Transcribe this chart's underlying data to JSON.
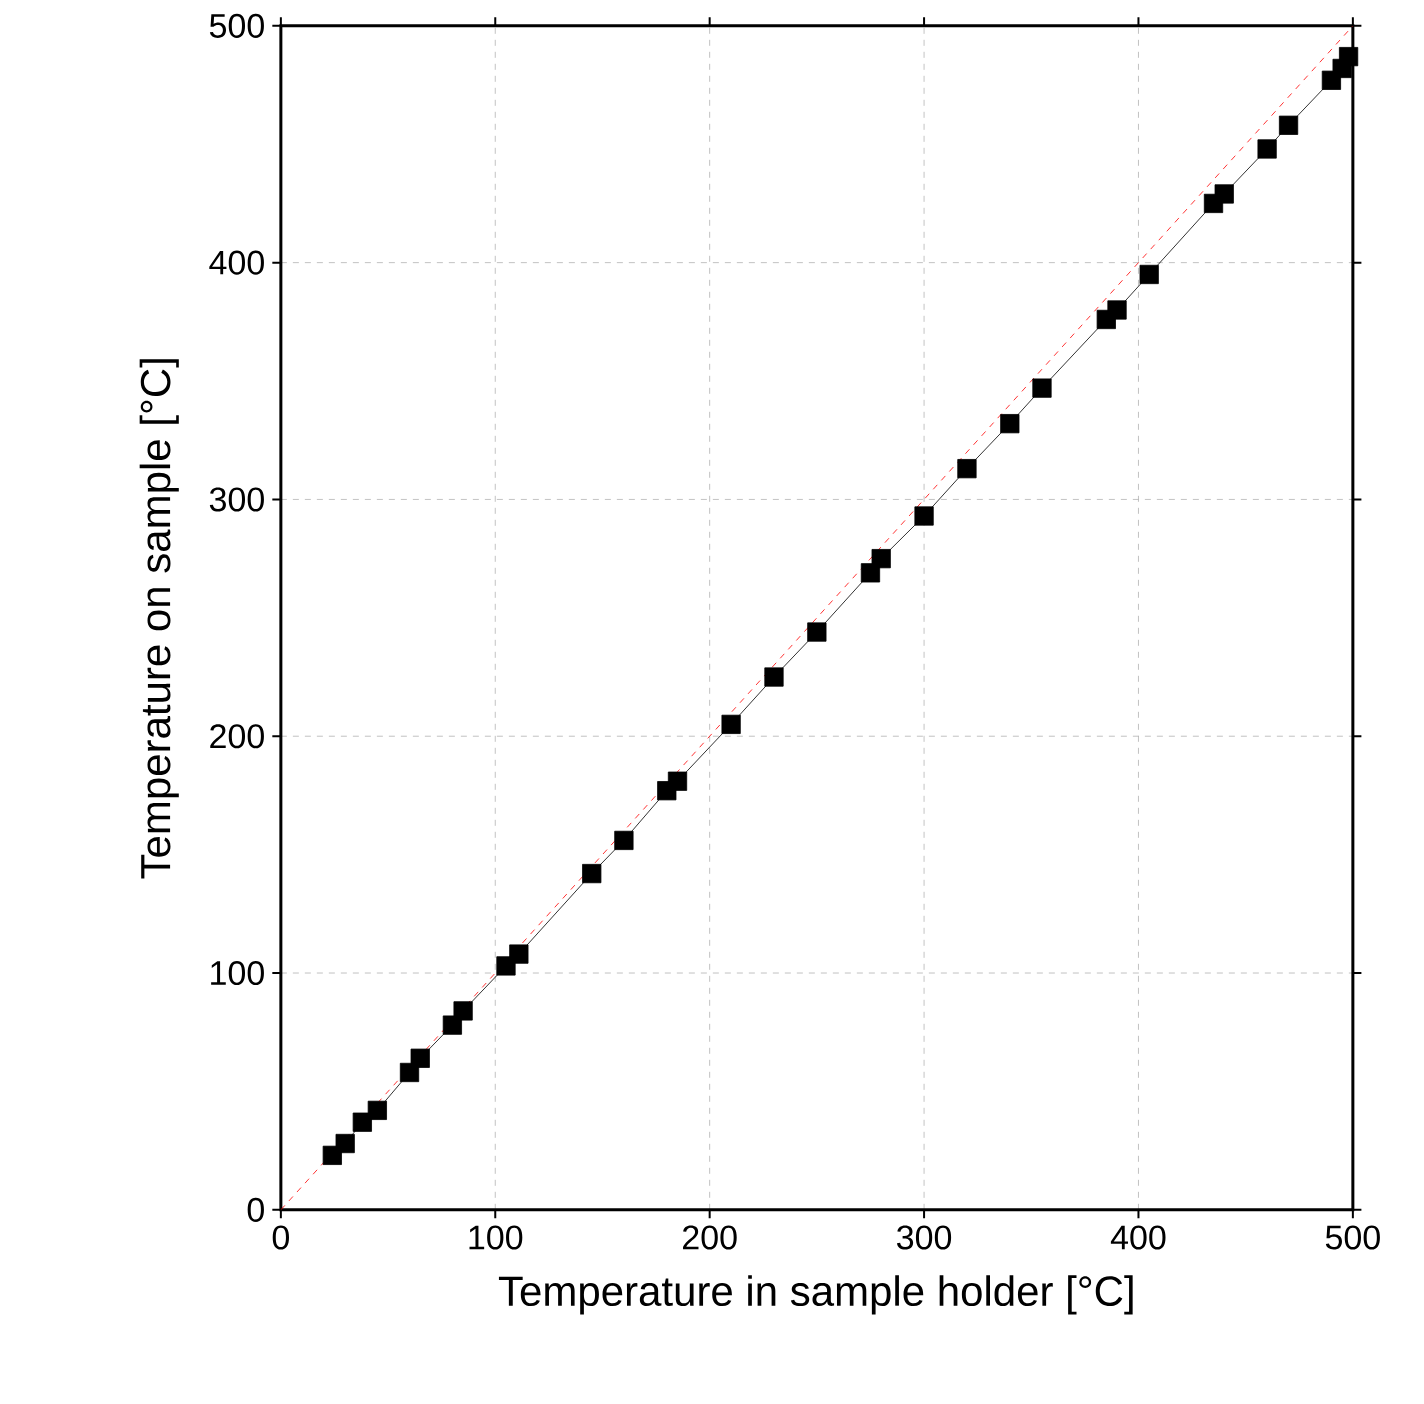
{
  "chart_data": {
    "type": "line",
    "xlabel": "Temperature in sample holder [°C]",
    "ylabel": "Temperature on sample [°C]",
    "xlim": [
      0,
      500
    ],
    "ylim": [
      0,
      500
    ],
    "xticks": [
      0,
      100,
      200,
      300,
      400,
      500
    ],
    "yticks": [
      0,
      100,
      200,
      300,
      400,
      500
    ],
    "grid": true,
    "series": [
      {
        "color": "#000000",
        "marker": "square",
        "line_style": "solid",
        "x": [
          24,
          30,
          38,
          45,
          60,
          65,
          80,
          85,
          105,
          111,
          145,
          160,
          180,
          185,
          210,
          230,
          250,
          275,
          280,
          300,
          320,
          340,
          355,
          385,
          390,
          405,
          435,
          440,
          460,
          470,
          490,
          495,
          498
        ],
        "values": [
          23,
          28,
          37,
          42,
          58,
          64,
          78,
          84,
          103,
          108,
          142,
          156,
          177,
          181,
          205,
          225,
          244,
          269,
          275,
          293,
          313,
          332,
          347,
          376,
          380,
          395,
          425,
          429,
          448,
          458,
          477,
          482,
          487
        ]
      },
      {
        "color": "#ff0000",
        "marker": "none",
        "line_style": "dashed",
        "x": [
          0,
          500
        ],
        "values": [
          0,
          500
        ]
      }
    ]
  }
}
